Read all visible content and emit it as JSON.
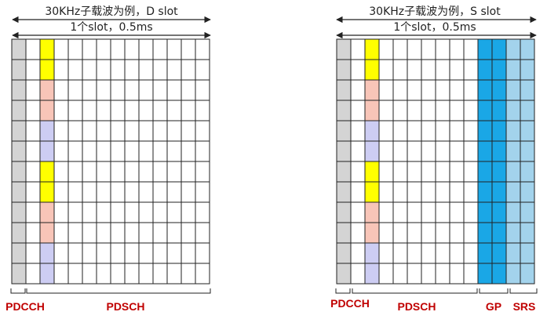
{
  "colors": {
    "pdcch": "#d4d4d4",
    "yellow": "#ffff00",
    "pink": "#f8c5b8",
    "lavender": "#cdcdf3",
    "gp": "#1aa7e6",
    "srs": "#a3d3ec",
    "white": "#ffffff",
    "grid": "#222222",
    "label": "#c00000"
  },
  "d_slot": {
    "title": "30KHz子载波为例，D slot",
    "span_label": "1个slot，0.5ms",
    "labels": [
      "PDCCH",
      "PDSCH"
    ]
  },
  "s_slot": {
    "title": "30KHz子载波为例，S slot",
    "span_label": "1个slot，0.5ms",
    "labels": [
      "PDCCH",
      "PDSCH",
      "GP",
      "SRS"
    ]
  }
}
